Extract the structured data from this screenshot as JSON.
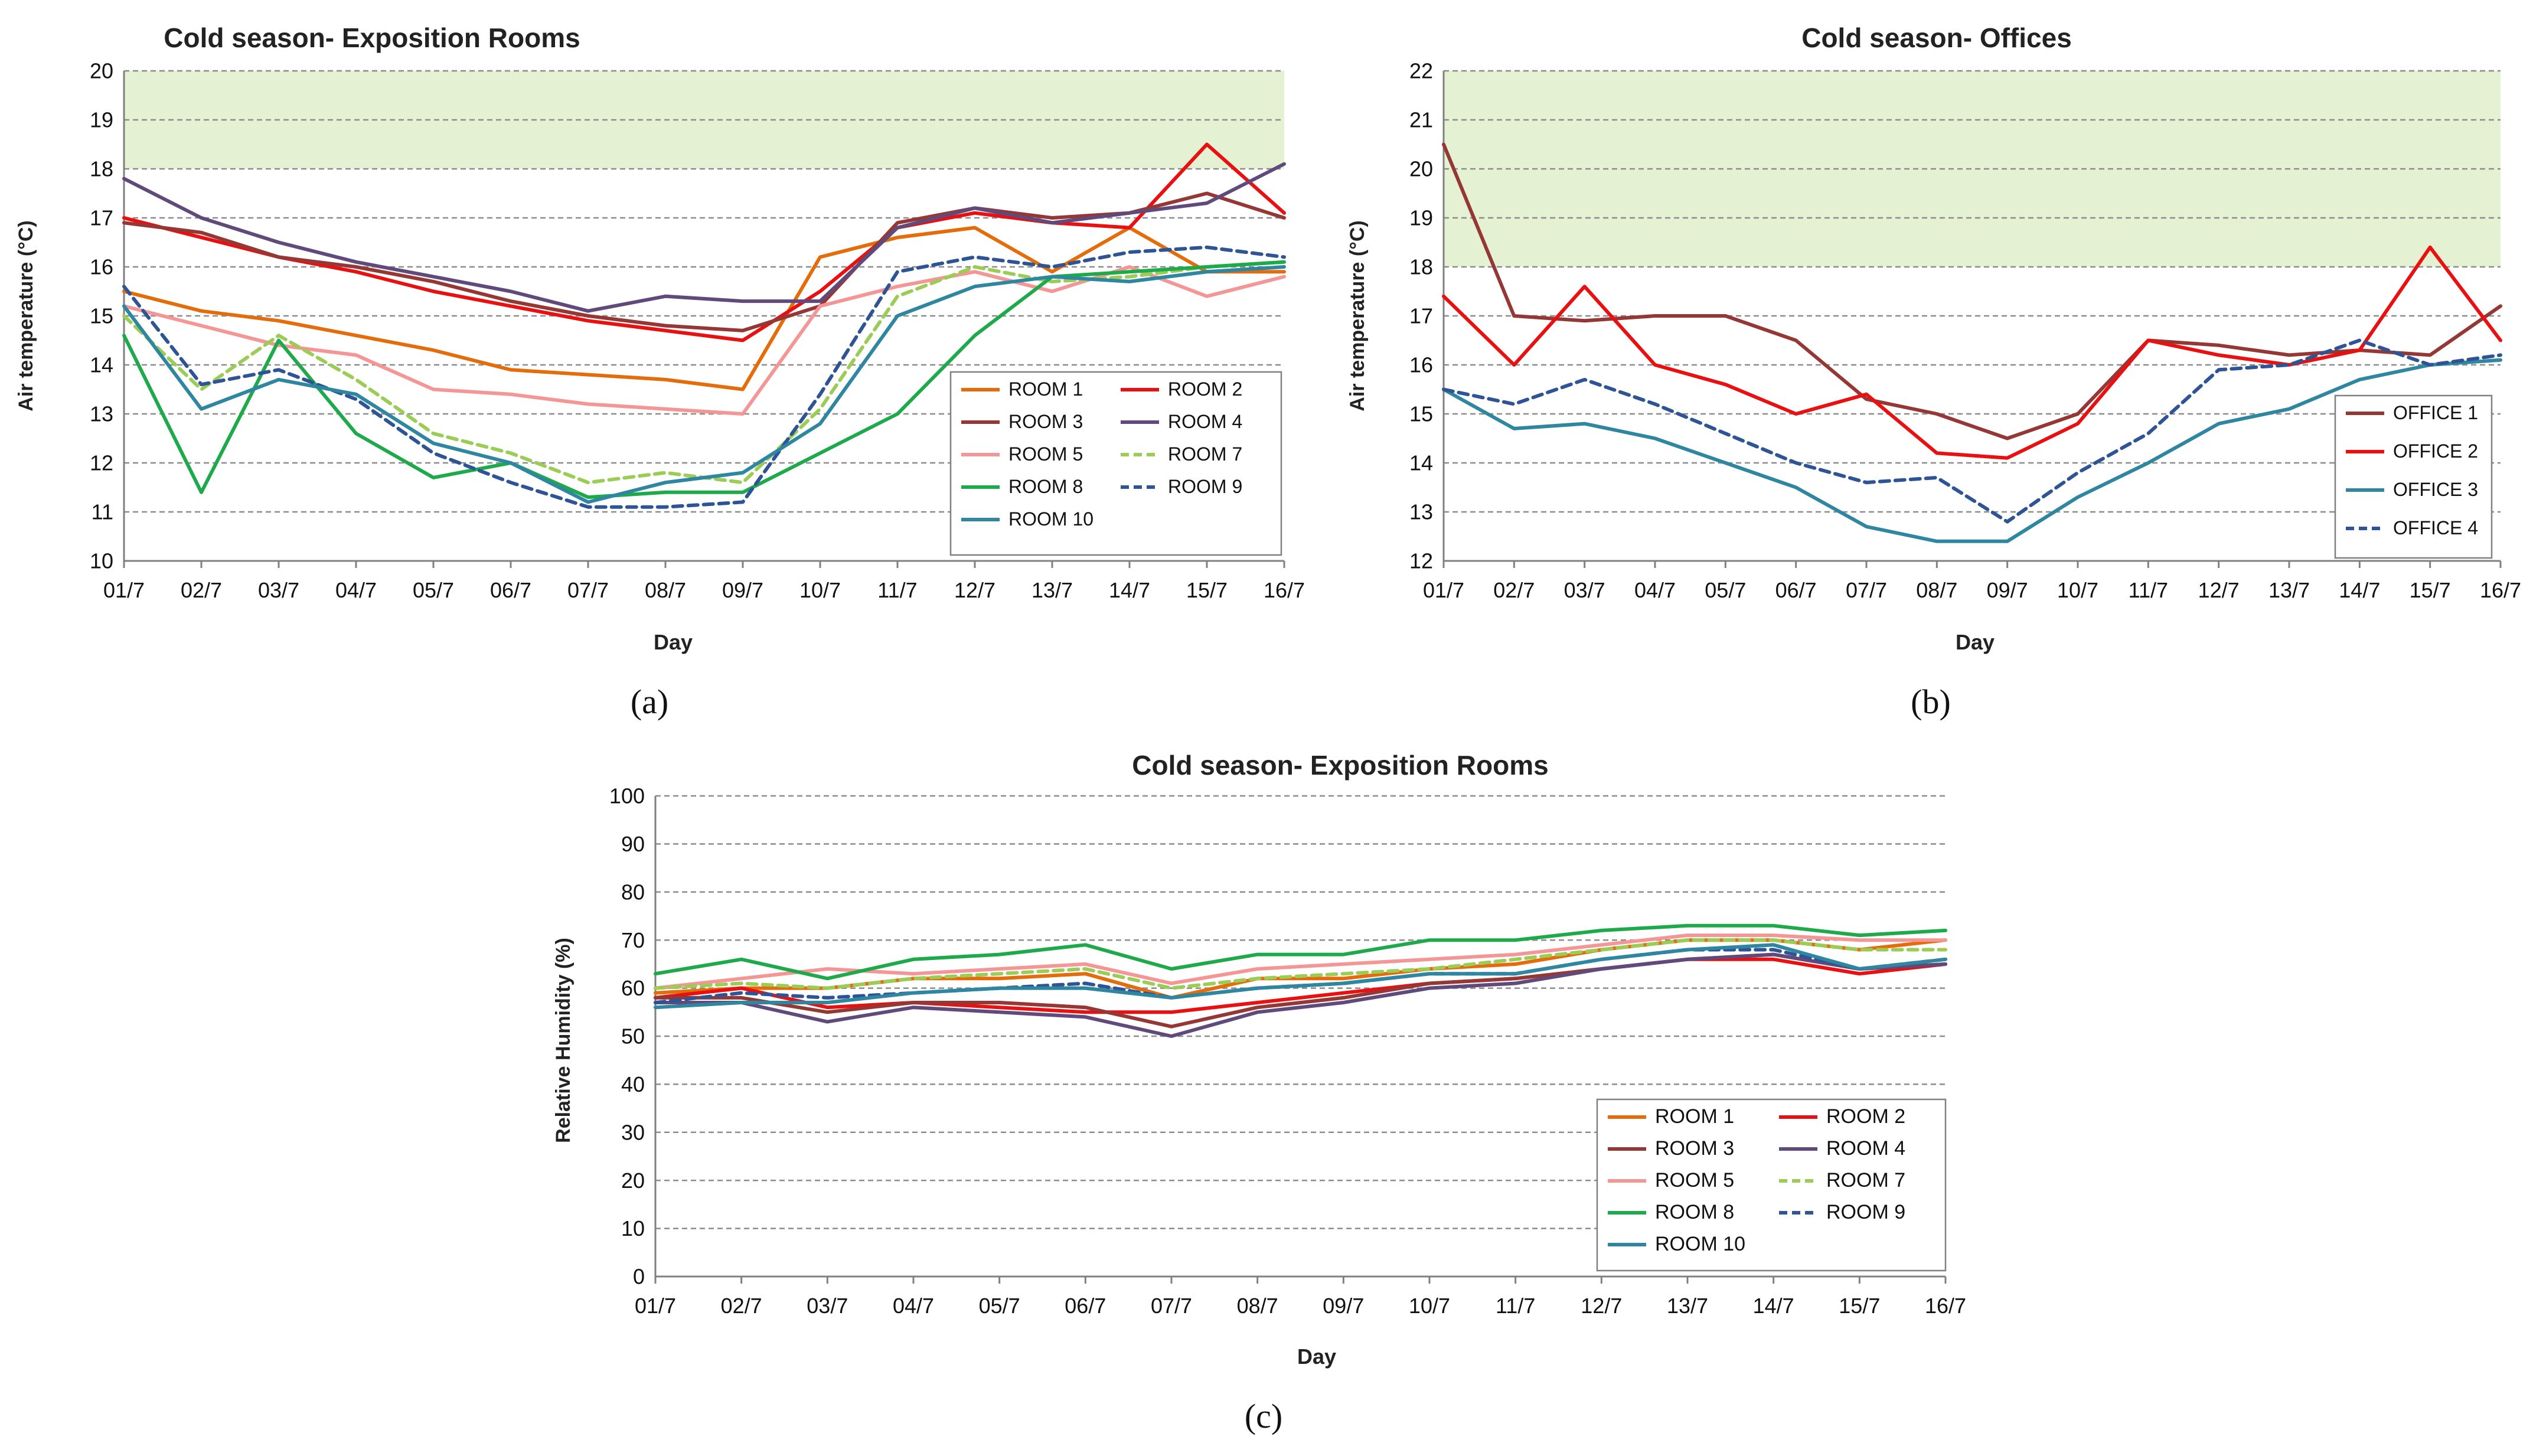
{
  "panels": [
    "(a)",
    "(b)",
    "(c)"
  ],
  "chart_data": [
    {
      "type": "line",
      "panel": "(a)",
      "title": "Cold season- Exposition Rooms",
      "xlabel": "Day",
      "ylabel": "Air temperature (°C)",
      "ylim": [
        10,
        20
      ],
      "yticks": [
        10,
        11,
        12,
        13,
        14,
        15,
        16,
        17,
        18,
        19,
        20
      ],
      "categories": [
        "01/7",
        "02/7",
        "03/7",
        "04/7",
        "05/7",
        "06/7",
        "07/7",
        "08/7",
        "09/7",
        "10/7",
        "11/7",
        "12/7",
        "13/7",
        "14/7",
        "15/7",
        "16/7"
      ],
      "comfort_band": [
        18,
        20
      ],
      "grid": true,
      "legend_position": "bottom-right",
      "series": [
        {
          "name": "ROOM 1",
          "color": "#E46C0A",
          "dash": false,
          "values": [
            15.5,
            15.1,
            14.9,
            14.6,
            14.3,
            13.9,
            13.8,
            13.7,
            13.5,
            16.2,
            16.6,
            16.8,
            15.9,
            16.8,
            15.9,
            15.9
          ]
        },
        {
          "name": "ROOM 2",
          "color": "#E81010",
          "dash": false,
          "values": [
            17.0,
            16.6,
            16.2,
            15.9,
            15.5,
            15.2,
            14.9,
            14.7,
            14.5,
            15.5,
            16.8,
            17.1,
            16.9,
            16.8,
            18.5,
            17.1
          ]
        },
        {
          "name": "ROOM 3",
          "color": "#953735",
          "dash": false,
          "values": [
            16.9,
            16.7,
            16.2,
            16.0,
            15.7,
            15.3,
            15.0,
            14.8,
            14.7,
            15.2,
            16.9,
            17.2,
            17.0,
            17.1,
            17.5,
            17.0
          ]
        },
        {
          "name": "ROOM 4",
          "color": "#604A7B",
          "dash": false,
          "values": [
            17.8,
            17.0,
            16.5,
            16.1,
            15.8,
            15.5,
            15.1,
            15.4,
            15.3,
            15.3,
            16.8,
            17.2,
            16.9,
            17.1,
            17.3,
            18.1
          ]
        },
        {
          "name": "ROOM 5",
          "color": "#F59696",
          "dash": false,
          "values": [
            15.2,
            14.8,
            14.4,
            14.2,
            13.5,
            13.4,
            13.2,
            13.1,
            13.0,
            15.2,
            15.6,
            15.9,
            15.5,
            16.0,
            15.4,
            15.8
          ]
        },
        {
          "name": "ROOM 7",
          "color": "#9BCC55",
          "dash": true,
          "values": [
            15.0,
            13.5,
            14.6,
            13.7,
            12.6,
            12.2,
            11.6,
            11.8,
            11.6,
            13.1,
            15.4,
            16.0,
            15.7,
            15.8,
            16.0,
            16.1
          ]
        },
        {
          "name": "ROOM 8",
          "color": "#1EAA4B",
          "dash": false,
          "values": [
            14.6,
            11.4,
            14.5,
            12.6,
            11.7,
            12.0,
            11.3,
            11.4,
            11.4,
            12.2,
            13.0,
            14.6,
            15.8,
            15.9,
            16.0,
            16.1
          ]
        },
        {
          "name": "ROOM 9",
          "color": "#2E5496",
          "dash": true,
          "values": [
            15.6,
            13.6,
            13.9,
            13.3,
            12.2,
            11.6,
            11.1,
            11.1,
            11.2,
            13.4,
            15.9,
            16.2,
            16.0,
            16.3,
            16.4,
            16.2
          ]
        },
        {
          "name": "ROOM 10",
          "color": "#2E86A0",
          "dash": false,
          "values": [
            15.2,
            13.1,
            13.7,
            13.4,
            12.4,
            12.0,
            11.2,
            11.6,
            11.8,
            12.8,
            15.0,
            15.6,
            15.8,
            15.7,
            15.9,
            16.0
          ]
        }
      ]
    },
    {
      "type": "line",
      "panel": "(b)",
      "title": "Cold season- Offices",
      "xlabel": "Day",
      "ylabel": "Air temperature (°C)",
      "ylim": [
        12,
        22
      ],
      "yticks": [
        12,
        13,
        14,
        15,
        16,
        17,
        18,
        19,
        20,
        21,
        22
      ],
      "categories": [
        "01/7",
        "02/7",
        "03/7",
        "04/7",
        "05/7",
        "06/7",
        "07/7",
        "08/7",
        "09/7",
        "10/7",
        "11/7",
        "12/7",
        "13/7",
        "14/7",
        "15/7",
        "16/7"
      ],
      "comfort_band": [
        18,
        22
      ],
      "grid": true,
      "legend_position": "bottom-right",
      "series": [
        {
          "name": "OFFICE 1",
          "color": "#953735",
          "dash": false,
          "values": [
            20.5,
            17.0,
            16.9,
            17.0,
            17.0,
            16.5,
            15.3,
            15.0,
            14.5,
            15.0,
            16.5,
            16.4,
            16.2,
            16.3,
            16.2,
            17.2
          ]
        },
        {
          "name": "OFFICE 2",
          "color": "#E81010",
          "dash": false,
          "values": [
            17.4,
            16.0,
            17.6,
            16.0,
            15.6,
            15.0,
            15.4,
            14.2,
            14.1,
            14.8,
            16.5,
            16.2,
            16.0,
            16.3,
            18.4,
            16.5
          ]
        },
        {
          "name": "OFFICE 3",
          "color": "#2E86A0",
          "dash": false,
          "values": [
            15.5,
            14.7,
            14.8,
            14.5,
            14.0,
            13.5,
            12.7,
            12.4,
            12.4,
            13.3,
            14.0,
            14.8,
            15.1,
            15.7,
            16.0,
            16.1
          ]
        },
        {
          "name": "OFFICE 4",
          "color": "#2E5496",
          "dash": true,
          "values": [
            15.5,
            15.2,
            15.7,
            15.2,
            14.6,
            14.0,
            13.6,
            13.7,
            12.8,
            13.8,
            14.6,
            15.9,
            16.0,
            16.5,
            16.0,
            16.2
          ]
        }
      ]
    },
    {
      "type": "line",
      "panel": "(c)",
      "title": "Cold season- Exposition Rooms",
      "xlabel": "Day",
      "ylabel": "Relative Humidity (%)",
      "ylim": [
        0,
        100
      ],
      "yticks": [
        0,
        10,
        20,
        30,
        40,
        50,
        60,
        70,
        80,
        90,
        100
      ],
      "categories": [
        "01/7",
        "02/7",
        "03/7",
        "04/7",
        "05/7",
        "06/7",
        "07/7",
        "08/7",
        "09/7",
        "10/7",
        "11/7",
        "12/7",
        "13/7",
        "14/7",
        "15/7",
        "16/7"
      ],
      "grid": true,
      "legend_position": "bottom-right",
      "series": [
        {
          "name": "ROOM 1",
          "color": "#E46C0A",
          "dash": false,
          "values": [
            59,
            60,
            60,
            62,
            62,
            63,
            58,
            62,
            62,
            64,
            65,
            68,
            70,
            70,
            68,
            70
          ]
        },
        {
          "name": "ROOM 2",
          "color": "#E81010",
          "dash": false,
          "values": [
            58,
            60,
            56,
            57,
            56,
            55,
            55,
            57,
            59,
            61,
            62,
            64,
            66,
            66,
            63,
            65
          ]
        },
        {
          "name": "ROOM 3",
          "color": "#953735",
          "dash": false,
          "values": [
            58,
            58,
            55,
            57,
            57,
            56,
            52,
            56,
            58,
            61,
            62,
            64,
            66,
            67,
            64,
            65
          ]
        },
        {
          "name": "ROOM 4",
          "color": "#604A7B",
          "dash": false,
          "values": [
            57,
            57,
            53,
            56,
            55,
            54,
            50,
            55,
            57,
            60,
            61,
            64,
            66,
            67,
            64,
            65
          ]
        },
        {
          "name": "ROOM 5",
          "color": "#F59696",
          "dash": false,
          "values": [
            60,
            62,
            64,
            63,
            64,
            65,
            61,
            64,
            65,
            66,
            67,
            69,
            71,
            71,
            70,
            70
          ]
        },
        {
          "name": "ROOM 7",
          "color": "#9BCC55",
          "dash": true,
          "values": [
            60,
            61,
            60,
            62,
            63,
            64,
            60,
            62,
            63,
            64,
            66,
            68,
            70,
            70,
            68,
            68
          ]
        },
        {
          "name": "ROOM 8",
          "color": "#1EAA4B",
          "dash": false,
          "values": [
            63,
            66,
            62,
            66,
            67,
            69,
            64,
            67,
            67,
            70,
            70,
            72,
            73,
            73,
            71,
            72
          ]
        },
        {
          "name": "ROOM 9",
          "color": "#2E5496",
          "dash": true,
          "values": [
            57,
            59,
            58,
            59,
            60,
            61,
            58,
            60,
            61,
            63,
            63,
            66,
            68,
            68,
            64,
            66
          ]
        },
        {
          "name": "ROOM 10",
          "color": "#2E86A0",
          "dash": false,
          "values": [
            56,
            57,
            57,
            59,
            60,
            60,
            58,
            60,
            61,
            63,
            63,
            66,
            68,
            69,
            64,
            66
          ]
        }
      ]
    }
  ]
}
